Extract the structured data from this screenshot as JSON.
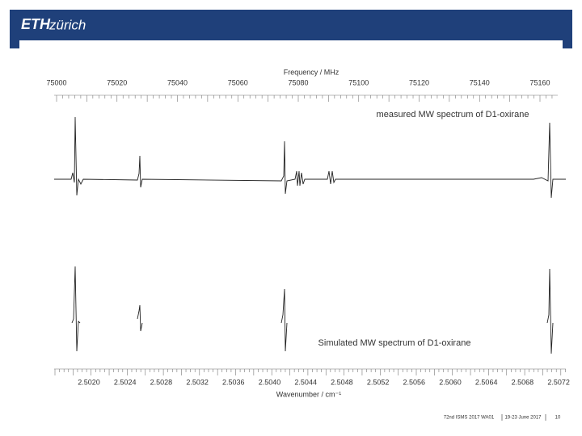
{
  "header": {
    "logo_bold": "ETH",
    "logo_rest": "zürich"
  },
  "figure": {
    "top_axis_label": "Frequency / MHz",
    "top_ticks": [
      "75000",
      "75020",
      "75040",
      "75060",
      "75080",
      "75100",
      "75120",
      "75140",
      "75160"
    ],
    "measured_label": "measured MW spectrum of D1-oxirane",
    "simulated_label": "Simulated MW spectrum of D1-oxirane",
    "bottom_ticks": [
      "2.5020",
      "2.5024",
      "2.5028",
      "2.5032",
      "2.5036",
      "2.5040",
      "2.5044",
      "2.5048",
      "2.5052",
      "2.5056",
      "2.5060",
      "2.5064",
      "2.5068",
      "2.5072"
    ],
    "bottom_axis_label": "Wavenumber / cm⁻¹"
  },
  "footer": {
    "event": "72nd ISMS 2017 WA01",
    "dates": "19-23 June 2017",
    "page": "10"
  }
}
